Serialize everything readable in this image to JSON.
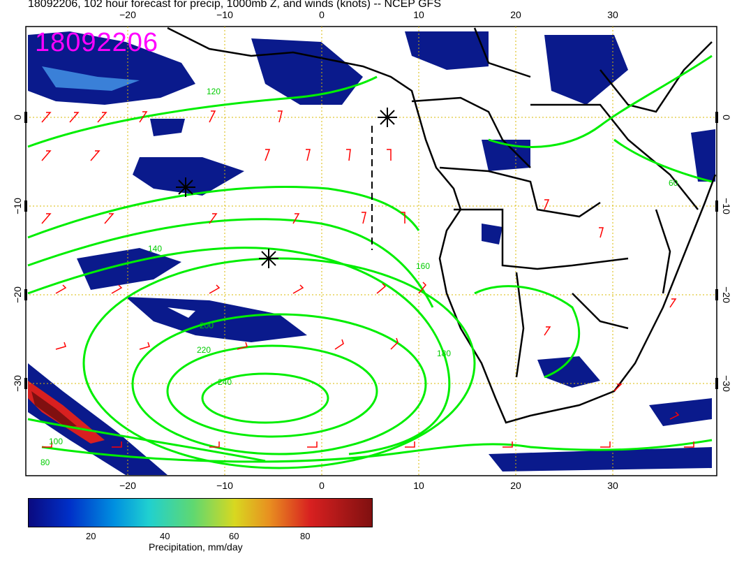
{
  "title": "18092206, 102 hour forecast for precip, 1000mb Z, and winds (knots) -- NCEP GFS",
  "stamp": "18092206",
  "axes": {
    "lon_ticks": [
      "−20",
      "−10",
      "0",
      "10",
      "20",
      "30"
    ],
    "lat_ticks": [
      "0",
      "−10",
      "−20",
      "−30"
    ]
  },
  "contour_labels": [
    "120",
    "140",
    "160",
    "180",
    "200",
    "220",
    "240",
    "100",
    "80",
    "60"
  ],
  "colorbar": {
    "ticks": [
      "20",
      "40",
      "60",
      "80"
    ],
    "label": "Precipitation, mm/day"
  },
  "colors": {
    "contour": "#00ee00",
    "barb": "#ff0000",
    "precip_low": "#0a1a8c",
    "stamp": "#ff00ff"
  }
}
